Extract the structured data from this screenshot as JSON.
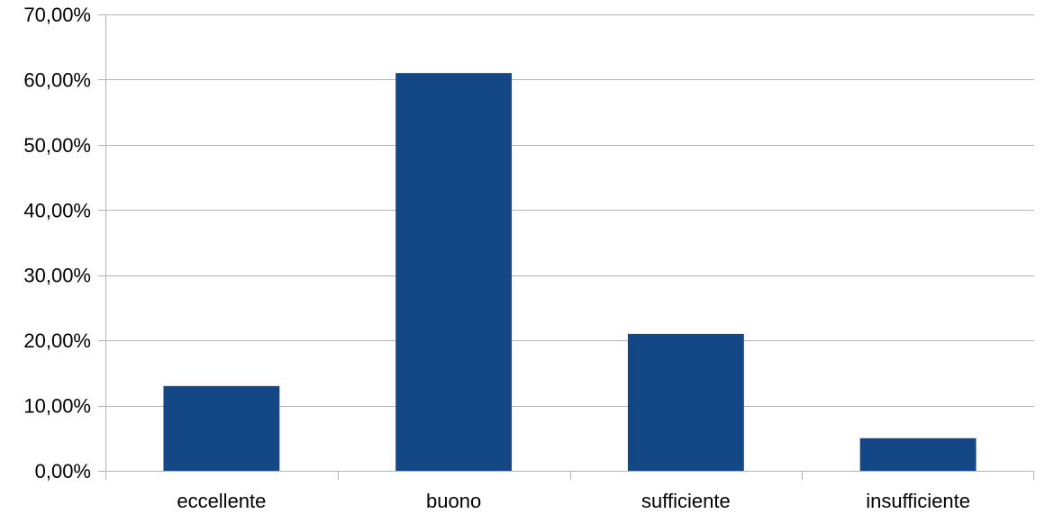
{
  "chart_data": {
    "type": "bar",
    "categories": [
      "eccellente",
      "buono",
      "sufficiente",
      "insufficiente"
    ],
    "values": [
      13.0,
      61.0,
      21.0,
      5.0
    ],
    "value_unit": "%",
    "ylim": [
      0,
      70
    ],
    "yticks": [
      0,
      10,
      20,
      30,
      40,
      50,
      60,
      70
    ],
    "ytick_labels": [
      "0,00%",
      "10,00%",
      "20,00%",
      "30,00%",
      "40,00%",
      "50,00%",
      "60,00%",
      "70,00%"
    ],
    "title": "",
    "xlabel": "",
    "ylabel": "",
    "grid": "horizontal",
    "legend": "none",
    "colors": {
      "bar": "#134785",
      "grid": "#b3b3b3",
      "axis": "#b3b3b3",
      "text": "#000000"
    }
  }
}
